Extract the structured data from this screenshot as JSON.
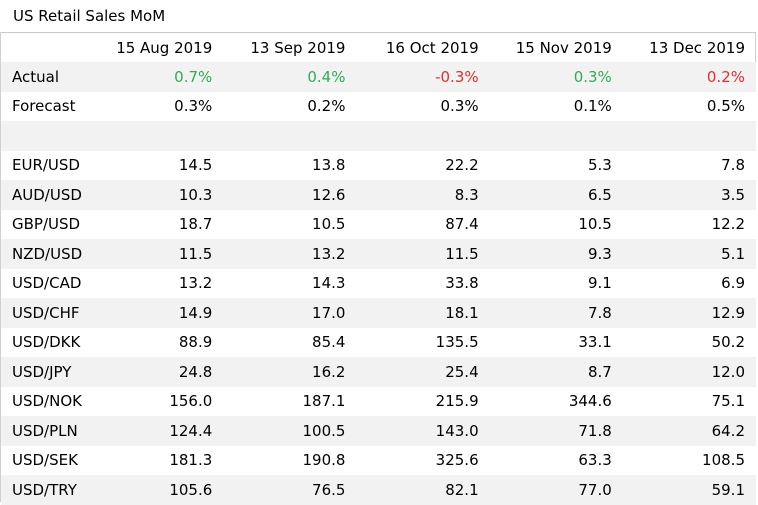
{
  "title": "US Retail Sales MoM",
  "colors": {
    "positive": "#2fae4f",
    "negative": "#e0302b",
    "neutral": "#000000",
    "band": "#f2f2f2"
  },
  "chart_data": {
    "type": "table",
    "title": "US Retail Sales MoM",
    "columns": [
      "15 Aug 2019",
      "13 Sep 2019",
      "16 Oct 2019",
      "15 Nov 2019",
      "13 Dec 2019"
    ],
    "rows": [
      {
        "label": "Actual",
        "values": [
          "0.7%",
          "0.4%",
          "-0.3%",
          "0.3%",
          "0.2%"
        ],
        "colors": [
          "positive",
          "positive",
          "negative",
          "positive",
          "negative"
        ]
      },
      {
        "label": "Forecast",
        "values": [
          "0.3%",
          "0.2%",
          "0.3%",
          "0.1%",
          "0.5%"
        ]
      },
      {
        "label": "",
        "values": [
          "",
          "",
          "",
          "",
          ""
        ]
      },
      {
        "label": "EUR/USD",
        "values": [
          "14.5",
          "13.8",
          "22.2",
          "5.3",
          "7.8"
        ]
      },
      {
        "label": "AUD/USD",
        "values": [
          "10.3",
          "12.6",
          "8.3",
          "6.5",
          "3.5"
        ]
      },
      {
        "label": "GBP/USD",
        "values": [
          "18.7",
          "10.5",
          "87.4",
          "10.5",
          "12.2"
        ]
      },
      {
        "label": "NZD/USD",
        "values": [
          "11.5",
          "13.2",
          "11.5",
          "9.3",
          "5.1"
        ]
      },
      {
        "label": "USD/CAD",
        "values": [
          "13.2",
          "14.3",
          "33.8",
          "9.1",
          "6.9"
        ]
      },
      {
        "label": "USD/CHF",
        "values": [
          "14.9",
          "17.0",
          "18.1",
          "7.8",
          "12.9"
        ]
      },
      {
        "label": "USD/DKK",
        "values": [
          "88.9",
          "85.4",
          "135.5",
          "33.1",
          "50.2"
        ]
      },
      {
        "label": "USD/JPY",
        "values": [
          "24.8",
          "16.2",
          "25.4",
          "8.7",
          "12.0"
        ]
      },
      {
        "label": "USD/NOK",
        "values": [
          "156.0",
          "187.1",
          "215.9",
          "344.6",
          "75.1"
        ]
      },
      {
        "label": "USD/PLN",
        "values": [
          "124.4",
          "100.5",
          "143.0",
          "71.8",
          "64.2"
        ]
      },
      {
        "label": "USD/SEK",
        "values": [
          "181.3",
          "190.8",
          "325.6",
          "63.3",
          "108.5"
        ]
      },
      {
        "label": "USD/TRY",
        "values": [
          "105.6",
          "76.5",
          "82.1",
          "77.0",
          "59.1"
        ]
      }
    ]
  }
}
